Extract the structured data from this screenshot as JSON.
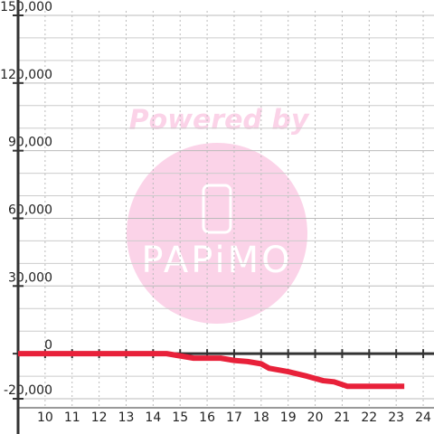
{
  "chart_data": {
    "type": "line",
    "watermark": [
      "Powered by",
      "PAPiMO"
    ],
    "x": [
      9,
      14.5,
      15,
      15.5,
      16.5,
      17,
      17.5,
      18,
      18.3,
      19,
      19.7,
      20.3,
      20.7,
      21.2,
      23.3
    ],
    "series": [
      {
        "color": "#e8213a",
        "values": [
          0,
          0,
          -1000,
          -2000,
          -2000,
          -3000,
          -3500,
          -4500,
          -6500,
          -8000,
          -10000,
          -12000,
          -12500,
          -14500,
          -14500
        ]
      }
    ],
    "xlim": [
      9,
      24.4
    ],
    "xticks": [
      10,
      11,
      12,
      13,
      14,
      15,
      16,
      17,
      18,
      19,
      20,
      21,
      22,
      23,
      24
    ],
    "ylim": [
      -24000,
      152000
    ],
    "yticks": [
      {
        "value": -20000,
        "label": "-20,000"
      },
      0,
      {
        "value": 30000,
        "label": "30,000"
      },
      {
        "value": 60000,
        "label": "60,000"
      },
      {
        "value": 90000,
        "label": "90,000"
      },
      {
        "value": 120000,
        "label": "120,000"
      },
      {
        "value": 150000,
        "label": "150,000"
      }
    ],
    "y_minor_ticks": [
      -10000,
      10000,
      20000,
      40000,
      50000,
      70000,
      80000,
      100000,
      110000,
      130000,
      140000
    ],
    "grid": true
  }
}
